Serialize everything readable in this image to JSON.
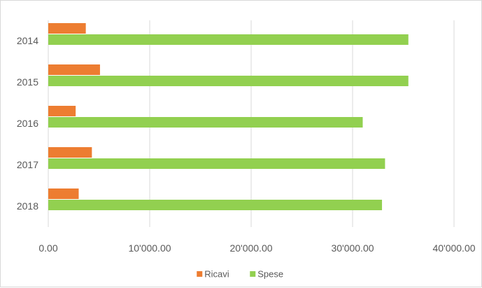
{
  "chart_data": {
    "type": "bar",
    "orientation": "horizontal",
    "title": "",
    "xlabel": "",
    "ylabel": "",
    "categories": [
      "2014",
      "2015",
      "2016",
      "2017",
      "2018"
    ],
    "series": [
      {
        "name": "Ricavi",
        "color": "#ed7d31",
        "values": [
          3700,
          5100,
          2700,
          4300,
          3000
        ]
      },
      {
        "name": "Spese",
        "color": "#92d050",
        "values": [
          35500,
          35500,
          31000,
          33200,
          32900
        ]
      }
    ],
    "xlim": [
      0,
      40000
    ],
    "x_ticks": [
      {
        "value": 0,
        "label": "0.00"
      },
      {
        "value": 10000,
        "label": "10'000.00"
      },
      {
        "value": 20000,
        "label": "20'000.00"
      },
      {
        "value": 30000,
        "label": "30'000.00"
      },
      {
        "value": 40000,
        "label": "40'000.00"
      }
    ],
    "grid": true,
    "legend": {
      "position": "bottom",
      "entries": [
        "Ricavi",
        "Spese"
      ]
    }
  }
}
